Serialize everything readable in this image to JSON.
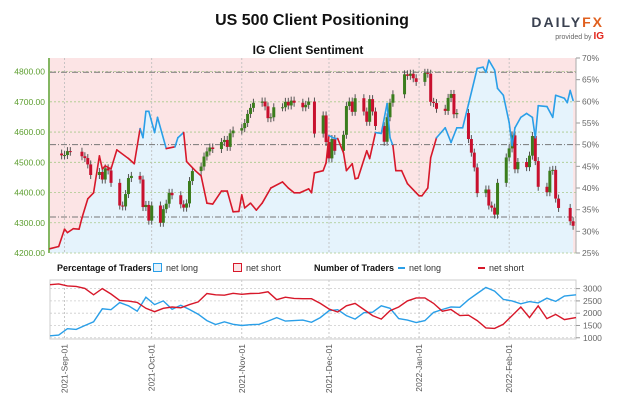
{
  "title": "US 500 Client Positioning",
  "logo": {
    "brand_main": "DAILY",
    "brand_accent": "FX",
    "provided_by": "provided by",
    "ig": "IG"
  },
  "subtitle": "IG Client Sentiment",
  "legend": {
    "percentage_title": "Percentage of Traders",
    "pct_long": "net long",
    "pct_short": "net short",
    "number_title": "Number of Traders",
    "num_long": "net long",
    "num_short": "net short"
  },
  "colors": {
    "long": "#2a9fe8",
    "short": "#d7182a",
    "long_fill": "#e5f3fc",
    "short_fill": "#fce4e5",
    "price_axis": "#5c9e2e",
    "candle_up": "#3b7d1d",
    "candle_down": "#c8102e",
    "wick": "#555555"
  },
  "chart_data": [
    {
      "type": "candlestick+area",
      "xlim": [
        "2021-08-27",
        "2022-02-24"
      ],
      "price_axis": {
        "side": "left",
        "ylim": [
          4200,
          4845
        ],
        "ticks": [
          "4200.00",
          "4300.00",
          "4400.00",
          "4500.00",
          "4600.00",
          "4700.00",
          "4800.00"
        ]
      },
      "percent_axis": {
        "side": "right",
        "ylim": [
          25,
          70
        ],
        "ticks": [
          "25%",
          "30%",
          "35%",
          "40%",
          "45%",
          "50%",
          "55%",
          "60%",
          "65%",
          "70%"
        ]
      },
      "reference_lines_percent": [
        33.3,
        50,
        66.7
      ],
      "grid": true,
      "price_closes": [
        [
          "2021-08-30",
          4529
        ],
        [
          "2021-08-31",
          4523
        ],
        [
          "2021-09-01",
          4524
        ],
        [
          "2021-09-02",
          4537
        ],
        [
          "2021-09-03",
          4535
        ],
        [
          "2021-09-07",
          4520
        ],
        [
          "2021-09-08",
          4514
        ],
        [
          "2021-09-09",
          4493
        ],
        [
          "2021-09-10",
          4458
        ],
        [
          "2021-09-13",
          4468
        ],
        [
          "2021-09-14",
          4443
        ],
        [
          "2021-09-15",
          4480
        ],
        [
          "2021-09-16",
          4473
        ],
        [
          "2021-09-17",
          4432
        ],
        [
          "2021-09-20",
          4357
        ],
        [
          "2021-09-21",
          4354
        ],
        [
          "2021-09-22",
          4395
        ],
        [
          "2021-09-23",
          4448
        ],
        [
          "2021-09-24",
          4455
        ],
        [
          "2021-09-27",
          4443
        ],
        [
          "2021-09-28",
          4352
        ],
        [
          "2021-09-29",
          4359
        ],
        [
          "2021-09-30",
          4307
        ],
        [
          "2021-10-01",
          4357
        ],
        [
          "2021-10-04",
          4300
        ],
        [
          "2021-10-05",
          4345
        ],
        [
          "2021-10-06",
          4363
        ],
        [
          "2021-10-07",
          4399
        ],
        [
          "2021-10-08",
          4391
        ],
        [
          "2021-10-11",
          4361
        ],
        [
          "2021-10-12",
          4350
        ],
        [
          "2021-10-13",
          4364
        ],
        [
          "2021-10-14",
          4438
        ],
        [
          "2021-10-15",
          4471
        ],
        [
          "2021-10-18",
          4486
        ],
        [
          "2021-10-19",
          4519
        ],
        [
          "2021-10-20",
          4536
        ],
        [
          "2021-10-21",
          4549
        ],
        [
          "2021-10-22",
          4544
        ],
        [
          "2021-10-25",
          4567
        ],
        [
          "2021-10-26",
          4574
        ],
        [
          "2021-10-27",
          4551
        ],
        [
          "2021-10-28",
          4596
        ],
        [
          "2021-10-29",
          4605
        ],
        [
          "2021-11-01",
          4613
        ],
        [
          "2021-11-02",
          4630
        ],
        [
          "2021-11-03",
          4660
        ],
        [
          "2021-11-04",
          4680
        ],
        [
          "2021-11-05",
          4697
        ],
        [
          "2021-11-08",
          4701
        ],
        [
          "2021-11-09",
          4685
        ],
        [
          "2021-11-10",
          4646
        ],
        [
          "2021-11-11",
          4649
        ],
        [
          "2021-11-12",
          4682
        ],
        [
          "2021-11-15",
          4682
        ],
        [
          "2021-11-16",
          4700
        ],
        [
          "2021-11-17",
          4688
        ],
        [
          "2021-11-18",
          4704
        ],
        [
          "2021-11-19",
          4697
        ],
        [
          "2021-11-22",
          4682
        ],
        [
          "2021-11-23",
          4690
        ],
        [
          "2021-11-24",
          4701
        ],
        [
          "2021-11-26",
          4595
        ],
        [
          "2021-11-29",
          4655
        ],
        [
          "2021-11-30",
          4567
        ],
        [
          "2021-12-01",
          4513
        ],
        [
          "2021-12-02",
          4577
        ],
        [
          "2021-12-03",
          4538
        ],
        [
          "2021-12-06",
          4591
        ],
        [
          "2021-12-07",
          4686
        ],
        [
          "2021-12-08",
          4701
        ],
        [
          "2021-12-09",
          4667
        ],
        [
          "2021-12-10",
          4712
        ],
        [
          "2021-12-13",
          4668
        ],
        [
          "2021-12-14",
          4634
        ],
        [
          "2021-12-15",
          4709
        ],
        [
          "2021-12-16",
          4668
        ],
        [
          "2021-12-17",
          4620
        ],
        [
          "2021-12-20",
          4568
        ],
        [
          "2021-12-21",
          4649
        ],
        [
          "2021-12-22",
          4697
        ],
        [
          "2021-12-23",
          4725
        ],
        [
          "2021-12-27",
          4791
        ],
        [
          "2021-12-28",
          4786
        ],
        [
          "2021-12-29",
          4793
        ],
        [
          "2021-12-30",
          4778
        ],
        [
          "2021-12-31",
          4766
        ],
        [
          "2022-01-03",
          4796
        ],
        [
          "2022-01-04",
          4793
        ],
        [
          "2022-01-05",
          4700
        ],
        [
          "2022-01-06",
          4696
        ],
        [
          "2022-01-07",
          4677
        ],
        [
          "2022-01-10",
          4670
        ],
        [
          "2022-01-11",
          4713
        ],
        [
          "2022-01-12",
          4726
        ],
        [
          "2022-01-13",
          4659
        ],
        [
          "2022-01-14",
          4663
        ],
        [
          "2022-01-18",
          4577
        ],
        [
          "2022-01-19",
          4532
        ],
        [
          "2022-01-20",
          4483
        ],
        [
          "2022-01-21",
          4398
        ],
        [
          "2022-01-24",
          4410
        ],
        [
          "2022-01-25",
          4357
        ],
        [
          "2022-01-26",
          4350
        ],
        [
          "2022-01-27",
          4327
        ],
        [
          "2022-01-28",
          4432
        ],
        [
          "2022-01-31",
          4516
        ],
        [
          "2022-02-01",
          4546
        ],
        [
          "2022-02-02",
          4589
        ],
        [
          "2022-02-03",
          4477
        ],
        [
          "2022-02-04",
          4501
        ],
        [
          "2022-02-07",
          4484
        ],
        [
          "2022-02-08",
          4522
        ],
        [
          "2022-02-09",
          4587
        ],
        [
          "2022-02-10",
          4504
        ],
        [
          "2022-02-11",
          4419
        ],
        [
          "2022-02-14",
          4401
        ],
        [
          "2022-02-15",
          4472
        ],
        [
          "2022-02-16",
          4475
        ],
        [
          "2022-02-17",
          4380
        ],
        [
          "2022-02-18",
          4349
        ],
        [
          "2022-02-22",
          4305
        ],
        [
          "2022-02-23",
          4290
        ]
      ],
      "net_long_percent": [
        [
          "2021-08-27",
          26.0
        ],
        [
          "2021-08-30",
          26.5
        ],
        [
          "2021-09-01",
          30.5
        ],
        [
          "2021-09-02",
          29.7
        ],
        [
          "2021-09-04",
          30.6
        ],
        [
          "2021-09-06",
          30.5
        ],
        [
          "2021-09-07",
          33.1
        ],
        [
          "2021-09-09",
          37.5
        ],
        [
          "2021-09-11",
          38.9
        ],
        [
          "2021-09-13",
          47.4
        ],
        [
          "2021-09-14",
          44.4
        ],
        [
          "2021-09-15",
          45.1
        ],
        [
          "2021-09-17",
          44.4
        ],
        [
          "2021-09-19",
          48.8
        ],
        [
          "2021-09-23",
          46.8
        ],
        [
          "2021-09-25",
          45.6
        ],
        [
          "2021-09-27",
          53.7
        ],
        [
          "2021-09-28",
          51.6
        ],
        [
          "2021-09-29",
          57.7
        ],
        [
          "2021-09-30",
          57.7
        ],
        [
          "2021-10-02",
          52.8
        ],
        [
          "2021-10-03",
          56.3
        ],
        [
          "2021-10-06",
          49.1
        ],
        [
          "2021-10-09",
          49.5
        ],
        [
          "2021-10-10",
          51.6
        ],
        [
          "2021-10-12",
          52.8
        ],
        [
          "2021-10-13",
          46.1
        ],
        [
          "2021-10-16",
          44.0
        ],
        [
          "2021-10-18",
          42.8
        ],
        [
          "2021-10-20",
          36.5
        ],
        [
          "2021-10-22",
          36.3
        ],
        [
          "2021-10-25",
          39.3
        ],
        [
          "2021-10-27",
          39.3
        ],
        [
          "2021-10-29",
          34.5
        ],
        [
          "2021-10-31",
          34.6
        ],
        [
          "2021-11-01",
          38.4
        ],
        [
          "2021-11-02",
          35.4
        ],
        [
          "2021-11-04",
          36.5
        ],
        [
          "2021-11-06",
          34.9
        ],
        [
          "2021-11-08",
          36.5
        ],
        [
          "2021-11-11",
          40.0
        ],
        [
          "2021-11-15",
          41.4
        ],
        [
          "2021-11-17",
          40.0
        ],
        [
          "2021-11-19",
          38.9
        ],
        [
          "2021-11-21",
          38.9
        ],
        [
          "2021-11-24",
          39.8
        ],
        [
          "2021-11-25",
          38.9
        ],
        [
          "2021-11-26",
          43.5
        ],
        [
          "2021-11-29",
          44.0
        ],
        [
          "2021-11-30",
          45.8
        ],
        [
          "2021-12-01",
          52.1
        ],
        [
          "2021-12-03",
          51.4
        ],
        [
          "2021-12-04",
          51.4
        ],
        [
          "2021-12-06",
          48.1
        ],
        [
          "2021-12-07",
          44.0
        ],
        [
          "2021-12-09",
          45.6
        ],
        [
          "2021-12-10",
          42.1
        ],
        [
          "2021-12-11",
          42.3
        ],
        [
          "2021-12-14",
          48.6
        ],
        [
          "2021-12-15",
          46.8
        ],
        [
          "2021-12-17",
          52.8
        ],
        [
          "2021-12-19",
          52.6
        ],
        [
          "2021-12-21",
          59.5
        ],
        [
          "2021-12-22",
          51.6
        ],
        [
          "2021-12-23",
          49.8
        ],
        [
          "2021-12-24",
          44.0
        ],
        [
          "2021-12-26",
          44.0
        ],
        [
          "2021-12-28",
          41.0
        ],
        [
          "2021-12-31",
          38.9
        ],
        [
          "2022-01-01",
          38.2
        ],
        [
          "2022-01-02",
          38.2
        ],
        [
          "2022-01-04",
          40.0
        ],
        [
          "2022-01-05",
          47.0
        ],
        [
          "2022-01-07",
          51.6
        ],
        [
          "2022-01-10",
          53.9
        ],
        [
          "2022-01-12",
          50.5
        ],
        [
          "2022-01-14",
          53.9
        ],
        [
          "2022-01-16",
          53.9
        ],
        [
          "2022-01-18",
          59.3
        ],
        [
          "2022-01-21",
          67.6
        ],
        [
          "2022-01-23",
          67.9
        ],
        [
          "2022-01-24",
          66.7
        ],
        [
          "2022-01-25",
          69.5
        ],
        [
          "2022-01-27",
          67.2
        ],
        [
          "2022-01-28",
          63.0
        ],
        [
          "2022-01-30",
          61.4
        ],
        [
          "2022-02-01",
          55.1
        ],
        [
          "2022-02-02",
          49.8
        ],
        [
          "2022-02-03",
          53.9
        ],
        [
          "2022-02-05",
          56.3
        ],
        [
          "2022-02-07",
          57.2
        ],
        [
          "2022-02-09",
          56.3
        ],
        [
          "2022-02-10",
          51.6
        ],
        [
          "2022-02-11",
          59.0
        ],
        [
          "2022-02-14",
          58.8
        ],
        [
          "2022-02-16",
          56.3
        ],
        [
          "2022-02-17",
          61.4
        ],
        [
          "2022-02-20",
          60.7
        ],
        [
          "2022-02-21",
          59.7
        ],
        [
          "2022-02-22",
          62.5
        ],
        [
          "2022-02-23",
          60.2
        ]
      ]
    },
    {
      "type": "line",
      "xlim": [
        "2021-08-27",
        "2022-02-24"
      ],
      "ylim": [
        950,
        3350
      ],
      "y_ticks": [
        "1000",
        "1500",
        "2000",
        "2500",
        "3000"
      ],
      "x_ticks": [
        "2021-Sep-01",
        "2021-Oct-01",
        "2021-Nov-01",
        "2021-Dec-01",
        "2022-Jan-01",
        "2022-Feb-01"
      ],
      "x_tick_dates": [
        "2021-09-01",
        "2021-10-01",
        "2021-11-01",
        "2021-12-01",
        "2022-01-01",
        "2022-02-01"
      ],
      "grid": true,
      "dates": [
        "2021-08-27",
        "2021-08-30",
        "2021-09-02",
        "2021-09-05",
        "2021-09-08",
        "2021-09-11",
        "2021-09-14",
        "2021-09-17",
        "2021-09-20",
        "2021-09-23",
        "2021-09-26",
        "2021-09-29",
        "2021-10-02",
        "2021-10-05",
        "2021-10-08",
        "2021-10-11",
        "2021-10-14",
        "2021-10-17",
        "2021-10-20",
        "2021-10-23",
        "2021-10-26",
        "2021-10-29",
        "2021-11-01",
        "2021-11-04",
        "2021-11-07",
        "2021-11-10",
        "2021-11-13",
        "2021-11-16",
        "2021-11-19",
        "2021-11-22",
        "2021-11-25",
        "2021-11-28",
        "2021-12-01",
        "2021-12-04",
        "2021-12-07",
        "2021-12-10",
        "2021-12-13",
        "2021-12-16",
        "2021-12-19",
        "2021-12-22",
        "2021-12-25",
        "2021-12-28",
        "2021-12-31",
        "2022-01-03",
        "2022-01-06",
        "2022-01-09",
        "2022-01-12",
        "2022-01-15",
        "2022-01-18",
        "2022-01-21",
        "2022-01-24",
        "2022-01-27",
        "2022-01-30",
        "2022-02-02",
        "2022-02-05",
        "2022-02-08",
        "2022-02-11",
        "2022-02-14",
        "2022-02-17",
        "2022-02-20",
        "2022-02-24"
      ],
      "series": [
        {
          "name": "net long",
          "values": [
            1080,
            1110,
            1370,
            1340,
            1500,
            1650,
            2180,
            2140,
            2430,
            2300,
            2080,
            2650,
            2350,
            2500,
            2160,
            2320,
            2150,
            1960,
            1700,
            1540,
            1650,
            1550,
            1500,
            1530,
            1550,
            1680,
            1820,
            1680,
            1700,
            1720,
            1630,
            1820,
            2100,
            2140,
            1900,
            1760,
            2020,
            2040,
            2300,
            2200,
            1780,
            1720,
            1620,
            1700,
            2030,
            2150,
            2250,
            2240,
            2550,
            2800,
            3050,
            2900,
            2560,
            2500,
            2380,
            2470,
            2420,
            2610,
            2480,
            2700,
            2750
          ]
        },
        {
          "name": "net short",
          "values": [
            3160,
            3190,
            3110,
            3090,
            3010,
            2750,
            3000,
            2780,
            2520,
            2490,
            2440,
            2200,
            2060,
            2200,
            2250,
            2220,
            2350,
            2460,
            2800,
            2750,
            2730,
            2810,
            2770,
            2800,
            2810,
            2870,
            2550,
            2650,
            2600,
            2590,
            2590,
            2400,
            2170,
            2050,
            2300,
            2400,
            2150,
            1900,
            1760,
            2100,
            2250,
            2500,
            2620,
            2620,
            2400,
            2080,
            2150,
            1900,
            1920,
            1700,
            1400,
            1380,
            1550,
            1900,
            2250,
            1820,
            2300,
            1780,
            1950,
            1740,
            1820
          ]
        }
      ]
    }
  ]
}
